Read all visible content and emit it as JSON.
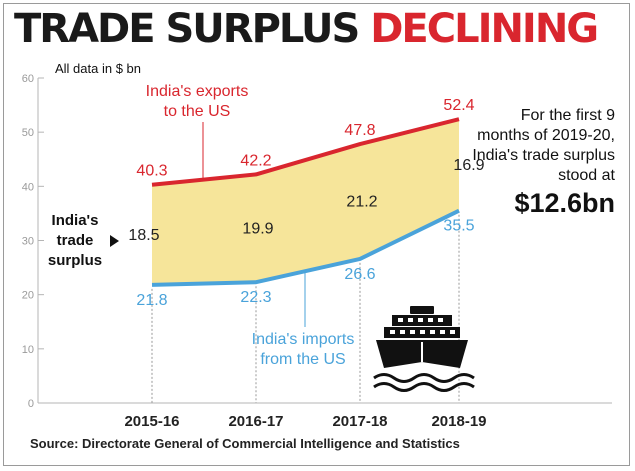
{
  "headline": {
    "part1": "TRADE SURPLUS",
    "part2": "DECLINING"
  },
  "unit_note": "All data in $ bn",
  "side_note": {
    "text": "For the first 9 months of 2019-20, India's trade surplus stood at",
    "highlight": "$12.6bn"
  },
  "source": "Source: Directorate General of Commercial Intelligence and Statistics",
  "colors": {
    "exports": "#d9262e",
    "imports": "#4aa3da",
    "surplus_fill": "#f6e59a",
    "headline_accent": "#d9262e"
  },
  "icon": "cruise-ship-icon",
  "chart_data": {
    "type": "area",
    "categories": [
      "2015-16",
      "2016-17",
      "2017-18",
      "2018-19"
    ],
    "ylim": [
      0,
      60
    ],
    "yticks": [
      0,
      10,
      20,
      30,
      40,
      50,
      60
    ],
    "grid": false,
    "series": [
      {
        "name": "India's exports to the US",
        "values": [
          40.3,
          42.2,
          47.8,
          52.4
        ]
      },
      {
        "name": "India's imports from the US",
        "values": [
          21.8,
          22.3,
          26.6,
          35.5
        ]
      }
    ],
    "surplus": {
      "name": "India's trade surplus",
      "values": [
        18.5,
        19.9,
        21.2,
        16.9
      ]
    },
    "value_labels": {
      "exports": [
        "40.3",
        "42.2",
        "47.8",
        "52.4"
      ],
      "imports": [
        "21.8",
        "22.3",
        "26.6",
        "35.5"
      ],
      "surplus": [
        "18.5",
        "19.9",
        "21.2",
        "16.9"
      ]
    }
  }
}
